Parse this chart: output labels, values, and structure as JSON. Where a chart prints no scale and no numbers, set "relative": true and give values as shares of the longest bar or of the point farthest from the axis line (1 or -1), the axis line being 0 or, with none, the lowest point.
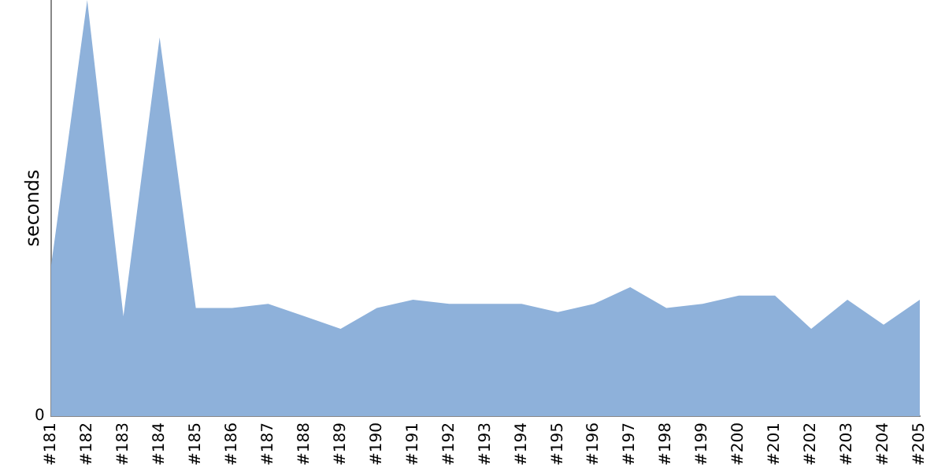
{
  "chart_data": {
    "type": "area",
    "ylabel": "seconds",
    "relative": true,
    "annotations": [
      "0"
    ],
    "grid": false,
    "legend": false,
    "categories": [
      "#181",
      "#182",
      "#183",
      "#184",
      "#185",
      "#186",
      "#187",
      "#188",
      "#189",
      "#190",
      "#191",
      "#192",
      "#193",
      "#194",
      "#195",
      "#196",
      "#197",
      "#198",
      "#199",
      "#200",
      "#201",
      "#202",
      "#203",
      "#204",
      "#205"
    ],
    "series": [
      {
        "color": "#8eb1da",
        "values": [
          0.36,
          1,
          0.24,
          0.91,
          0.26,
          0.26,
          0.27,
          0.24,
          0.21,
          0.26,
          0.28,
          0.27,
          0.27,
          0.27,
          0.25,
          0.27,
          0.31,
          0.26,
          0.27,
          0.29,
          0.29,
          0.21,
          0.28,
          0.22,
          0.28
        ]
      }
    ]
  }
}
